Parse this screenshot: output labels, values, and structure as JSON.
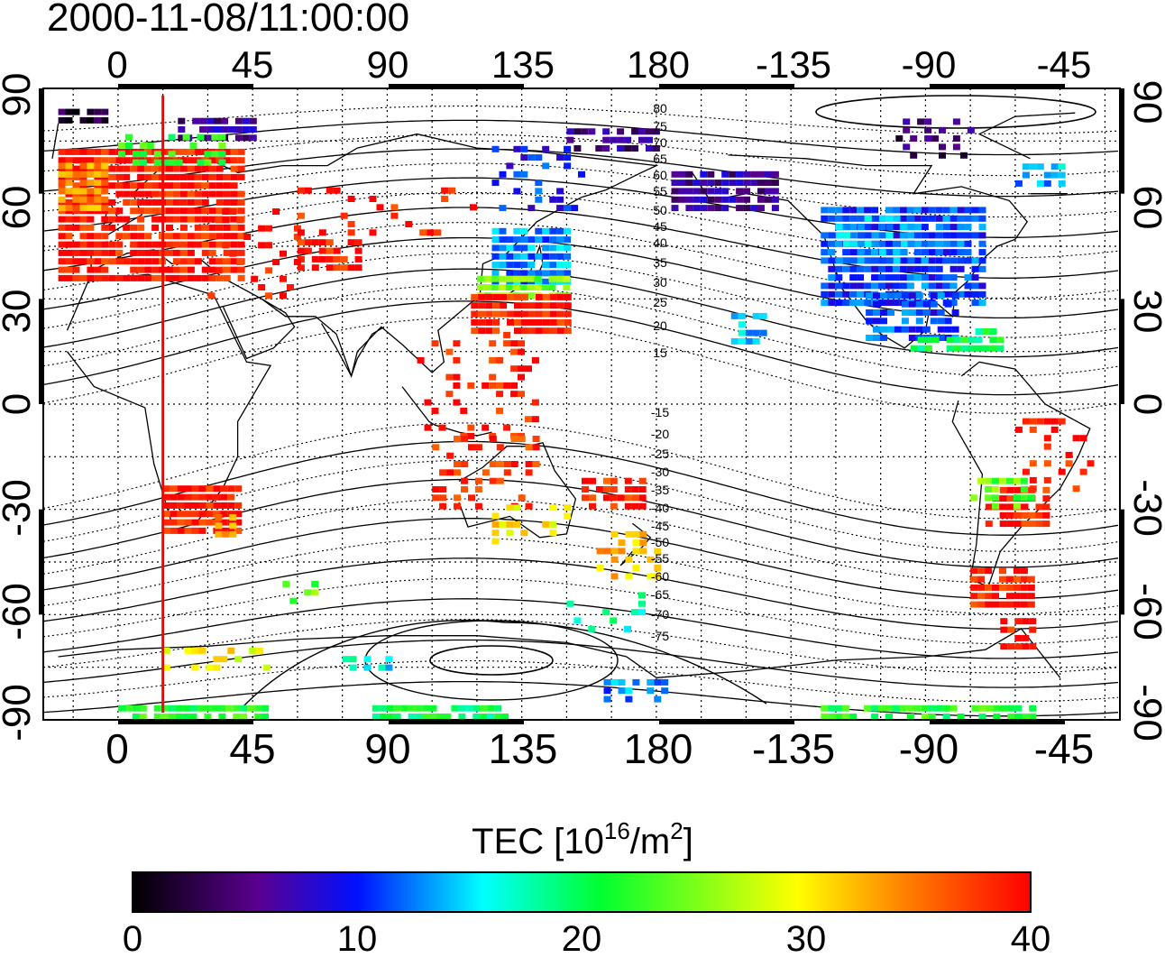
{
  "title": "2000-11-08/11:00:00",
  "map": {
    "lon_ticks": [
      "0",
      "45",
      "90",
      "135",
      "180",
      "-135",
      "-90",
      "-45"
    ],
    "lat_ticks_left": [
      "90",
      "60",
      "30",
      "0",
      "-30",
      "-60",
      "-90"
    ],
    "lat_ticks_right": [
      "90",
      "60",
      "30",
      "0",
      "-30",
      "-60",
      "-90"
    ],
    "contour_labels": [
      "80",
      "75",
      "70",
      "65",
      "60",
      "55",
      "50",
      "45",
      "40",
      "35",
      "30",
      "25",
      "20",
      "15",
      "-15",
      "-20",
      "-25",
      "-30",
      "-35",
      "-40",
      "-45",
      "-50",
      "-55",
      "-60",
      "-65",
      "-70",
      "-75"
    ],
    "marker_longitude": 15,
    "marker_color": "#ff0000"
  },
  "colorbar": {
    "title_main": "TEC  [10",
    "title_exp1": "16",
    "title_mid": "/m",
    "title_exp2": "2",
    "title_end": "]",
    "tick_labels": [
      "0",
      "10",
      "20",
      "30",
      "40"
    ],
    "min": 0,
    "max": 40,
    "colors": [
      "#000000",
      "#5a0090",
      "#0010ff",
      "#00ffff",
      "#00ff30",
      "#ffff00",
      "#ff8000",
      "#ff0000"
    ]
  }
}
